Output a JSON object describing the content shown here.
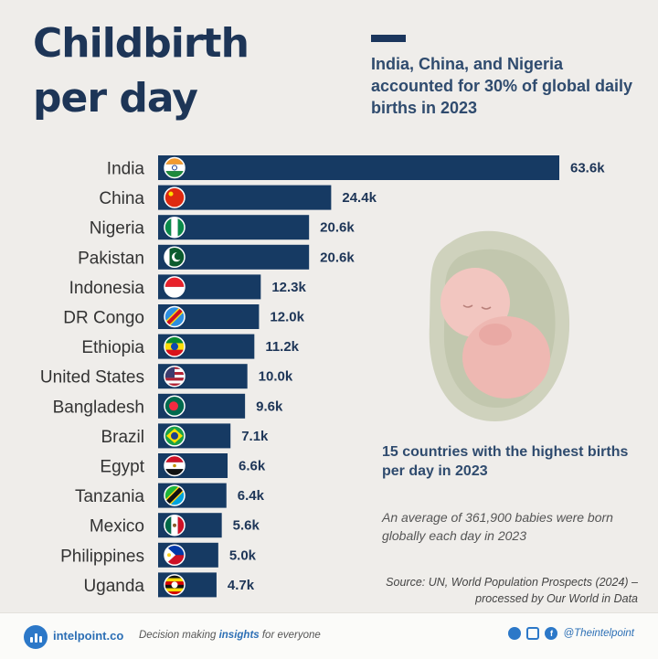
{
  "title_line1": "Childbirth",
  "title_line2": "per day",
  "subtitle": "India, China, and Nigeria accounted for 30% of global daily births in 2023",
  "note_main": "15 countries with the highest births per day in 2023",
  "note_avg": "An average of 361,900 babies were born globally each day in 2023",
  "note_source": "Source: UN, World Population Prospects (2024) – processed by Our World in Data",
  "colors": {
    "bar": "#163a63",
    "title": "#1d3557",
    "accent": "#2c78c8"
  },
  "chart_data": {
    "type": "bar",
    "orientation": "horizontal",
    "categories": [
      "India",
      "China",
      "Nigeria",
      "Pakistan",
      "Indonesia",
      "DR Congo",
      "Ethiopia",
      "United States",
      "Bangladesh",
      "Brazil",
      "Egypt",
      "Tanzania",
      "Mexico",
      "Philippines",
      "Uganda"
    ],
    "values": [
      63.6,
      24.4,
      20.6,
      20.6,
      12.3,
      12.0,
      11.2,
      10.0,
      9.6,
      7.1,
      6.6,
      6.4,
      5.6,
      5.0,
      4.7
    ],
    "value_labels": [
      "63.6k",
      "24.4k",
      "20.6k",
      "20.6k",
      "12.3k",
      "12.0k",
      "11.2k",
      "10.0k",
      "9.6k",
      "7.1k",
      "6.6k",
      "6.4k",
      "5.6k",
      "5.0k",
      "4.7k"
    ],
    "flags": [
      "india-flag",
      "china-flag",
      "nigeria-flag",
      "pakistan-flag",
      "indonesia-flag",
      "drcongo-flag",
      "ethiopia-flag",
      "usa-flag",
      "bangladesh-flag",
      "brazil-flag",
      "egypt-flag",
      "tanzania-flag",
      "mexico-flag",
      "philippines-flag",
      "uganda-flag"
    ],
    "xlim": [
      0,
      63.6
    ],
    "grid": false,
    "legend": "none"
  },
  "footer": {
    "brand": "intelpoint.co",
    "tagline_pre": "Decision making ",
    "tagline_bold": "insights",
    "tagline_post": " for everyone",
    "handle": "@Theintelpoint",
    "icons": [
      "logo-icon",
      "circle-icon",
      "instagram-icon",
      "facebook-icon"
    ]
  }
}
